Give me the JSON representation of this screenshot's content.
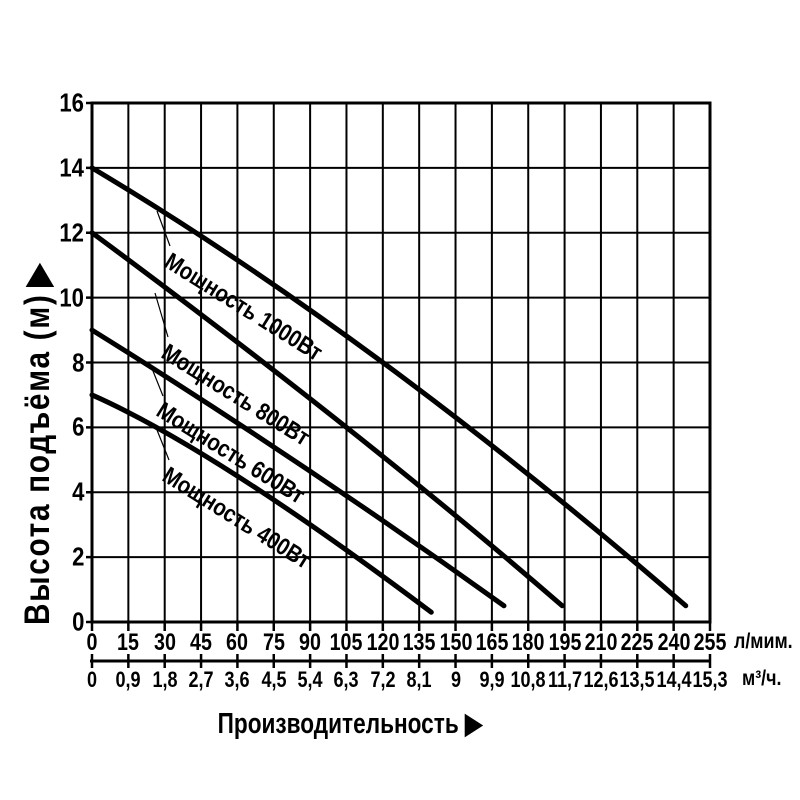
{
  "page": {
    "background": "#ffffff",
    "ink": "#000000"
  },
  "icons": {
    "x_axis_arrow": "▶",
    "y_axis_arrow": "▶"
  },
  "chart_data": {
    "type": "line",
    "title": "",
    "xlabel": "Производительность",
    "ylabel": "Высота подъёма (м)",
    "grid": "on",
    "legend": "labels-along-curves",
    "y_axis": {
      "range": [
        0,
        16
      ],
      "step": 2,
      "ticks": [
        "0",
        "2",
        "4",
        "6",
        "8",
        "10",
        "12",
        "14",
        "16"
      ]
    },
    "x_axis_primary": {
      "unit": "л/мим.",
      "range": [
        0,
        255
      ],
      "step": 15,
      "ticks": [
        "0",
        "15",
        "30",
        "45",
        "60",
        "75",
        "90",
        "105",
        "120",
        "135",
        "150",
        "165",
        "180",
        "195",
        "210",
        "225",
        "240",
        "255"
      ]
    },
    "x_axis_secondary": {
      "unit": "м³/ч.",
      "range": [
        0,
        15.3
      ],
      "step": 0.9,
      "ticks": [
        "0",
        "0,9",
        "1,8",
        "2,7",
        "3,6",
        "4,5",
        "5,4",
        "6,3",
        "7,2",
        "8,1",
        "9",
        "9,9",
        "10,8",
        "11,7",
        "12,6",
        "13,5",
        "14,4",
        "15,3"
      ]
    },
    "series": [
      {
        "name": "Мощность 1000Вт",
        "points_lpm_m": [
          [
            0,
            14
          ],
          [
            120,
            8
          ],
          [
            245,
            0.5
          ]
        ]
      },
      {
        "name": "Мощность 800Вт",
        "points_lpm_m": [
          [
            0,
            12
          ],
          [
            105,
            6
          ],
          [
            194,
            0.5
          ]
        ]
      },
      {
        "name": "Мощность 600Вт",
        "points_lpm_m": [
          [
            0,
            9
          ],
          [
            85,
            4.9
          ],
          [
            170,
            0.5
          ]
        ]
      },
      {
        "name": "Мощность 400Вт",
        "points_lpm_m": [
          [
            0,
            7
          ],
          [
            60,
            4.5
          ],
          [
            140,
            0.3
          ]
        ]
      }
    ]
  }
}
